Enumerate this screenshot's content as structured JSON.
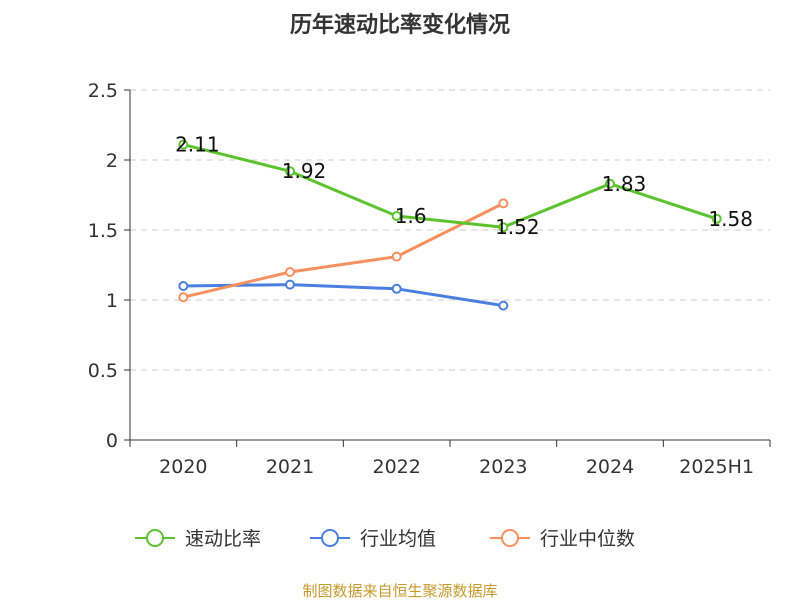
{
  "chart_data": {
    "type": "line",
    "title": "历年速动比率变化情况",
    "categories": [
      "2020",
      "2021",
      "2022",
      "2023",
      "2024",
      "2025H1"
    ],
    "ylim": [
      0,
      2.5
    ],
    "yticks": [
      "0",
      "0.5",
      "1",
      "1.5",
      "2",
      "2.5"
    ],
    "grid": "horizontal-dashed",
    "legend_position": "bottom",
    "series": [
      {
        "name": "速动比率",
        "color": "#5cc32f",
        "values": [
          2.11,
          1.92,
          1.6,
          1.52,
          1.83,
          1.58
        ],
        "labels": [
          "2.11",
          "1.92",
          "1.6",
          "1.52",
          "1.83",
          "1.58"
        ]
      },
      {
        "name": "行业均值",
        "color": "#4a7fe0",
        "values": [
          1.1,
          1.11,
          1.08,
          0.96,
          null,
          null
        ]
      },
      {
        "name": "行业中位数",
        "color": "#f6905f",
        "values": [
          1.02,
          1.2,
          1.31,
          1.69,
          null,
          null
        ]
      }
    ],
    "source": "制图数据来自恒生聚源数据库"
  }
}
